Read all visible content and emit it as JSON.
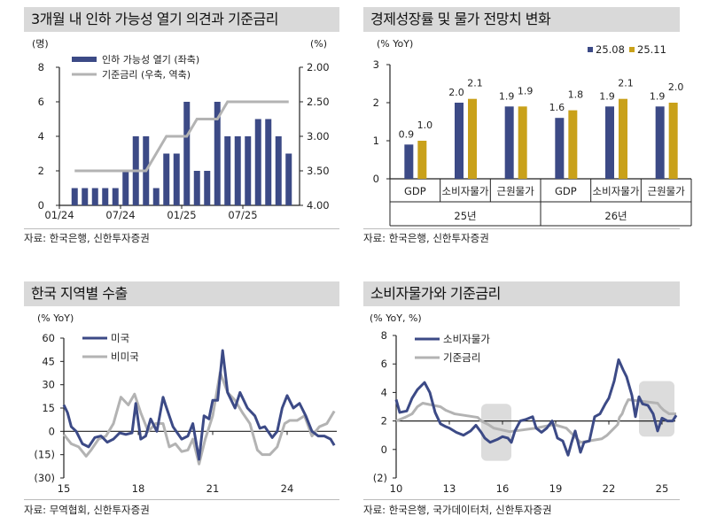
{
  "chart_data": [
    {
      "type": "bar+line",
      "title": "3개월 내 인하 가능성 열기 의견과 기준금리",
      "ylabel_left": "(명)",
      "ylabel_right": "(%)",
      "ylim_left": [
        0,
        8
      ],
      "yticks_left": [
        "0",
        "2",
        "4",
        "6",
        "8"
      ],
      "ylim_right_inverted": [
        2.0,
        4.0
      ],
      "yticks_right": [
        "2.00",
        "2.50",
        "3.00",
        "3.50",
        "4.00"
      ],
      "xticks": [
        "01/24",
        "07/24",
        "01/25",
        "07/25"
      ],
      "categories": [
        "02/24",
        "03/24",
        "04/24",
        "05/24",
        "06/24",
        "07/24",
        "08/24",
        "09/24",
        "10/24",
        "11/24",
        "12/24",
        "01/25",
        "02/25",
        "03/25",
        "04/25",
        "05/25",
        "06/25",
        "07/25",
        "08/25",
        "09/25",
        "10/25",
        "11/25"
      ],
      "series": [
        {
          "name": "인하 가능성 열기 (좌축)",
          "type": "bar",
          "color": "#3c4a86",
          "values": [
            1,
            1,
            1,
            1,
            1,
            2,
            4,
            4,
            1,
            3,
            3,
            6,
            2,
            2,
            6,
            4,
            4,
            4,
            5,
            5,
            4,
            3
          ]
        },
        {
          "name": "기준금리 (우축, 역축)",
          "type": "line",
          "color": "#b3b3b3",
          "values": [
            3.5,
            3.5,
            3.5,
            3.5,
            3.5,
            3.5,
            3.5,
            3.5,
            3.25,
            3.0,
            3.0,
            3.0,
            2.75,
            2.75,
            2.75,
            2.5,
            2.5,
            2.5,
            2.5,
            2.5,
            2.5,
            2.5
          ]
        }
      ],
      "source": "자료: 한국은행, 신한투자증권"
    },
    {
      "type": "bar",
      "title": "경제성장률 및 물가 전망치 변화",
      "ylabel": "(% YoY)",
      "ylim": [
        0,
        3
      ],
      "yticks": [
        "0",
        "1",
        "2",
        "3"
      ],
      "categories": [
        "GDP",
        "소비자물가",
        "근원물가",
        "GDP",
        "소비자물가",
        "근원물가"
      ],
      "groups": [
        "25년",
        "26년"
      ],
      "series": [
        {
          "name": "25.08",
          "color": "#3c4a86",
          "values": [
            0.9,
            2.0,
            1.9,
            1.6,
            1.9,
            1.9
          ],
          "labels": [
            "0.9",
            "2.0",
            "1.9",
            "1.6",
            "1.9",
            "1.9"
          ]
        },
        {
          "name": "25.11",
          "color": "#c9a11a",
          "values": [
            1.0,
            2.1,
            1.9,
            1.8,
            2.1,
            2.0
          ],
          "labels": [
            "1.0",
            "2.1",
            "1.9",
            "1.8",
            "2.1",
            "2.0"
          ]
        }
      ],
      "legend": "top-right",
      "source": "자료: 한국은행, 신한투자증권"
    },
    {
      "type": "line",
      "title": "한국 지역별 수출",
      "ylabel": "(% YoY)",
      "ylim": [
        -30,
        60
      ],
      "yticks": [
        "(30)",
        "(15)",
        "0",
        "15",
        "30",
        "45",
        "60"
      ],
      "xlim": [
        2015,
        2026
      ],
      "xticks": [
        "15",
        "18",
        "21",
        "24"
      ],
      "series": [
        {
          "name": "미국",
          "color": "#3c4a86",
          "points": [
            [
              2015.0,
              17
            ],
            [
              2015.15,
              12
            ],
            [
              2015.3,
              3
            ],
            [
              2015.5,
              0
            ],
            [
              2015.75,
              -8
            ],
            [
              2016.0,
              -10
            ],
            [
              2016.25,
              -4
            ],
            [
              2016.5,
              -3
            ],
            [
              2016.75,
              -7
            ],
            [
              2017.0,
              -5
            ],
            [
              2017.25,
              -1
            ],
            [
              2017.5,
              -2
            ],
            [
              2017.75,
              -1
            ],
            [
              2017.9,
              18
            ],
            [
              2018.1,
              -5
            ],
            [
              2018.3,
              -3
            ],
            [
              2018.5,
              8
            ],
            [
              2018.75,
              0
            ],
            [
              2019.0,
              22
            ],
            [
              2019.1,
              17
            ],
            [
              2019.4,
              3
            ],
            [
              2019.75,
              -5
            ],
            [
              2020.0,
              -3
            ],
            [
              2020.2,
              5
            ],
            [
              2020.45,
              -18
            ],
            [
              2020.65,
              10
            ],
            [
              2020.85,
              8
            ],
            [
              2021.0,
              20
            ],
            [
              2021.2,
              20
            ],
            [
              2021.4,
              52
            ],
            [
              2021.6,
              25
            ],
            [
              2021.9,
              15
            ],
            [
              2022.1,
              25
            ],
            [
              2022.4,
              15
            ],
            [
              2022.7,
              10
            ],
            [
              2022.9,
              2
            ],
            [
              2023.1,
              3
            ],
            [
              2023.4,
              -4
            ],
            [
              2023.6,
              0
            ],
            [
              2023.8,
              15
            ],
            [
              2024.0,
              23
            ],
            [
              2024.25,
              15
            ],
            [
              2024.5,
              18
            ],
            [
              2024.75,
              10
            ],
            [
              2025.0,
              0
            ],
            [
              2025.25,
              -3
            ],
            [
              2025.5,
              -3
            ],
            [
              2025.75,
              -5
            ],
            [
              2025.9,
              -9
            ]
          ]
        },
        {
          "name": "비미국",
          "color": "#b3b3b3",
          "points": [
            [
              2015.0,
              -2
            ],
            [
              2015.3,
              -8
            ],
            [
              2015.6,
              -10
            ],
            [
              2015.9,
              -16
            ],
            [
              2016.1,
              -12
            ],
            [
              2016.4,
              -5
            ],
            [
              2016.7,
              -3
            ],
            [
              2017.0,
              5
            ],
            [
              2017.3,
              22
            ],
            [
              2017.6,
              17
            ],
            [
              2017.85,
              24
            ],
            [
              2018.1,
              12
            ],
            [
              2018.4,
              0
            ],
            [
              2018.7,
              5
            ],
            [
              2019.0,
              5
            ],
            [
              2019.25,
              -10
            ],
            [
              2019.5,
              -8
            ],
            [
              2019.75,
              -13
            ],
            [
              2020.0,
              -12
            ],
            [
              2020.2,
              -5
            ],
            [
              2020.45,
              -21
            ],
            [
              2020.7,
              -5
            ],
            [
              2021.0,
              10
            ],
            [
              2021.3,
              38
            ],
            [
              2021.6,
              25
            ],
            [
              2021.9,
              20
            ],
            [
              2022.2,
              12
            ],
            [
              2022.5,
              5
            ],
            [
              2022.8,
              -12
            ],
            [
              2023.0,
              -15
            ],
            [
              2023.3,
              -15
            ],
            [
              2023.6,
              -10
            ],
            [
              2023.9,
              5
            ],
            [
              2024.1,
              7
            ],
            [
              2024.4,
              7
            ],
            [
              2024.7,
              10
            ],
            [
              2025.0,
              -3
            ],
            [
              2025.3,
              3
            ],
            [
              2025.6,
              5
            ],
            [
              2025.9,
              13
            ]
          ]
        }
      ],
      "source": "자료: 무역협회, 신한투자증권"
    },
    {
      "type": "line",
      "title": "소비자물가와 기준금리",
      "ylabel": "(% YoY, %)",
      "ylim": [
        -2,
        8
      ],
      "yticks": [
        "(2)",
        "0",
        "2",
        "4",
        "6",
        "8"
      ],
      "xlim": [
        2010,
        2025.9
      ],
      "xticks": [
        "10",
        "13",
        "16",
        "19",
        "22",
        "25"
      ],
      "reference_line": 2,
      "shaded_periods": [
        [
          2014.8,
          2016.5
        ],
        [
          2023.7,
          2025.7
        ]
      ],
      "series": [
        {
          "name": "소비자물가",
          "color": "#3c4a86",
          "points": [
            [
              2010.0,
              3.5
            ],
            [
              2010.2,
              2.6
            ],
            [
              2010.6,
              2.7
            ],
            [
              2010.9,
              3.6
            ],
            [
              2011.2,
              4.2
            ],
            [
              2011.6,
              4.7
            ],
            [
              2011.9,
              4.0
            ],
            [
              2012.2,
              2.6
            ],
            [
              2012.5,
              1.8
            ],
            [
              2012.8,
              1.6
            ],
            [
              2013.0,
              1.5
            ],
            [
              2013.4,
              1.2
            ],
            [
              2013.8,
              1.0
            ],
            [
              2014.2,
              1.3
            ],
            [
              2014.5,
              1.7
            ],
            [
              2014.8,
              1.2
            ],
            [
              2015.0,
              0.8
            ],
            [
              2015.3,
              0.5
            ],
            [
              2015.7,
              0.7
            ],
            [
              2016.0,
              0.9
            ],
            [
              2016.3,
              0.8
            ],
            [
              2016.5,
              0.5
            ],
            [
              2016.7,
              1.3
            ],
            [
              2017.0,
              2.0
            ],
            [
              2017.3,
              2.1
            ],
            [
              2017.7,
              2.3
            ],
            [
              2017.9,
              1.5
            ],
            [
              2018.2,
              1.2
            ],
            [
              2018.5,
              1.5
            ],
            [
              2018.8,
              2.0
            ],
            [
              2019.1,
              0.8
            ],
            [
              2019.4,
              0.6
            ],
            [
              2019.7,
              -0.4
            ],
            [
              2019.9,
              0.5
            ],
            [
              2020.1,
              1.3
            ],
            [
              2020.4,
              -0.2
            ],
            [
              2020.6,
              0.5
            ],
            [
              2020.9,
              0.6
            ],
            [
              2021.2,
              2.3
            ],
            [
              2021.5,
              2.5
            ],
            [
              2021.8,
              3.2
            ],
            [
              2022.0,
              3.6
            ],
            [
              2022.3,
              4.8
            ],
            [
              2022.55,
              6.3
            ],
            [
              2022.8,
              5.6
            ],
            [
              2023.0,
              5.1
            ],
            [
              2023.3,
              3.8
            ],
            [
              2023.5,
              2.3
            ],
            [
              2023.7,
              3.7
            ],
            [
              2023.9,
              3.2
            ],
            [
              2024.2,
              3.1
            ],
            [
              2024.5,
              2.5
            ],
            [
              2024.75,
              1.3
            ],
            [
              2025.0,
              2.2
            ],
            [
              2025.3,
              2.0
            ],
            [
              2025.6,
              2.0
            ],
            [
              2025.8,
              2.4
            ]
          ]
        },
        {
          "name": "기준금리",
          "color": "#b3b3b3",
          "points": [
            [
              2010.0,
              2.0
            ],
            [
              2010.5,
              2.25
            ],
            [
              2010.9,
              2.5
            ],
            [
              2011.2,
              3.0
            ],
            [
              2011.5,
              3.25
            ],
            [
              2012.5,
              3.0
            ],
            [
              2012.8,
              2.75
            ],
            [
              2013.3,
              2.5
            ],
            [
              2014.6,
              2.25
            ],
            [
              2014.8,
              2.0
            ],
            [
              2015.2,
              1.75
            ],
            [
              2015.5,
              1.5
            ],
            [
              2016.4,
              1.25
            ],
            [
              2017.9,
              1.5
            ],
            [
              2018.9,
              1.75
            ],
            [
              2019.6,
              1.5
            ],
            [
              2019.8,
              1.25
            ],
            [
              2020.2,
              0.75
            ],
            [
              2020.4,
              0.5
            ],
            [
              2021.6,
              0.75
            ],
            [
              2021.9,
              1.0
            ],
            [
              2022.1,
              1.25
            ],
            [
              2022.3,
              1.5
            ],
            [
              2022.5,
              1.75
            ],
            [
              2022.6,
              2.25
            ],
            [
              2022.75,
              2.5
            ],
            [
              2022.9,
              3.0
            ],
            [
              2023.0,
              3.25
            ],
            [
              2023.1,
              3.5
            ],
            [
              2024.75,
              3.25
            ],
            [
              2024.9,
              3.0
            ],
            [
              2025.1,
              2.75
            ],
            [
              2025.4,
              2.5
            ],
            [
              2025.8,
              2.5
            ]
          ]
        }
      ],
      "source": "자료: 한국은행, 국가데이터처, 신한투자증권"
    }
  ]
}
